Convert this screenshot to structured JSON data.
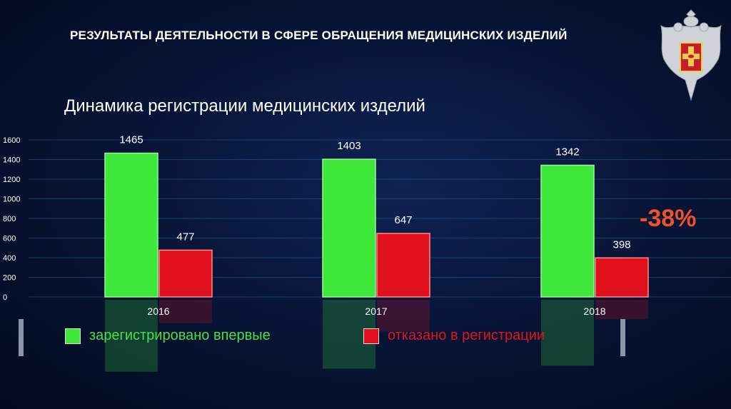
{
  "slide_title": "РЕЗУЛЬТАТЫ ДЕЯТЕЛЬНОСТИ В СФЕРЕ ОБРАЩЕНИЯ МЕДИЦИНСКИХ ИЗДЕЛИЙ",
  "emblem_icon": "double-headed-eagle-emblem-icon",
  "annotation": "-38%",
  "legend": {
    "registered": "зарегистрировано впервые",
    "refused": "отказано в регистрации"
  },
  "colors": {
    "registered": "#3ee83a",
    "refused": "#e0101c",
    "annotation": "#f0502a"
  },
  "chart_data": {
    "type": "bar",
    "title": "Динамика регистрации медицинских изделий",
    "xlabel": "",
    "ylabel": "",
    "categories": [
      "2016",
      "2017",
      "2018"
    ],
    "series": [
      {
        "name": "зарегистрировано впервые",
        "values": [
          1465,
          1403,
          1342
        ],
        "labels": [
          "1465",
          "1403",
          "1342"
        ]
      },
      {
        "name": "отказано в регистрации",
        "values": [
          477,
          647,
          398
        ],
        "labels": [
          "477",
          "647",
          "398"
        ]
      }
    ],
    "ylim": [
      0,
      1600
    ],
    "yticks": [
      0,
      200,
      400,
      600,
      800,
      1000,
      1200,
      1400,
      1600
    ],
    "grid": true
  }
}
